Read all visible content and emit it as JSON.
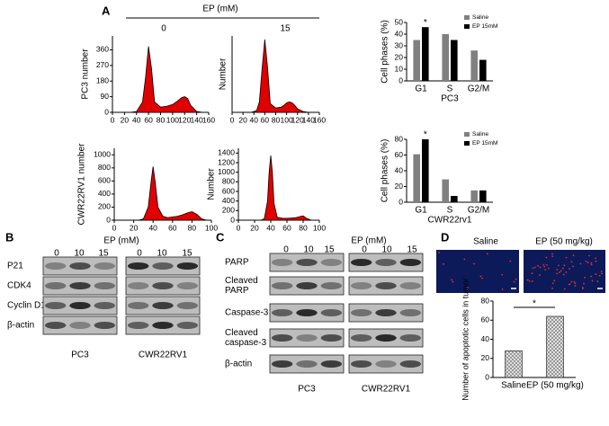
{
  "panel_labels": [
    "A",
    "B",
    "C",
    "D"
  ],
  "panel_a": {
    "header": "EP (mM)",
    "doses": [
      "0",
      "15"
    ]
  },
  "panel_b": {
    "header": "EP (mM)",
    "doses": [
      "0",
      "10",
      "15",
      "0",
      "10",
      "15"
    ],
    "rows": [
      [
        "P21"
      ],
      [
        "CDK4"
      ],
      [
        "Cyclin D1"
      ],
      [
        "β-actin"
      ]
    ],
    "cell_lines": [
      "PC3",
      "CWR22RV1"
    ]
  },
  "panel_c": {
    "header": "EP (mM)",
    "doses": [
      "0",
      "10",
      "15",
      "0",
      "10",
      "15"
    ],
    "rows": [
      [
        "PARP"
      ],
      [
        "Cleaved",
        "PARP"
      ],
      [
        "Caspase-3"
      ],
      [
        "Cleaved",
        "caspase-3"
      ],
      [
        "β-actin"
      ]
    ],
    "cell_lines": [
      "PC3",
      "CWR22RV1"
    ]
  },
  "panel_d": {
    "groups": [
      "Saline",
      "EP (50 mg/kg)"
    ]
  },
  "chart_data": [
    {
      "type": "area",
      "ylabel": "PC3 number",
      "color": "#e00000",
      "x": [
        30,
        40,
        50,
        55,
        60,
        65,
        70,
        80,
        90,
        100,
        110,
        115,
        120,
        125,
        130,
        140,
        150
      ],
      "values": [
        0,
        5,
        60,
        200,
        380,
        250,
        60,
        30,
        35,
        45,
        70,
        85,
        90,
        80,
        40,
        5,
        0
      ],
      "xlim": [
        0,
        160
      ],
      "xticks": [
        0,
        20,
        40,
        60,
        80,
        100,
        120,
        140,
        160
      ],
      "ylim": [
        0,
        440
      ],
      "yticks": [
        0,
        90,
        180,
        270,
        360
      ]
    },
    {
      "type": "area",
      "ylabel": "Number",
      "color": "#e00000",
      "x": [
        35,
        45,
        50,
        55,
        60,
        65,
        70,
        80,
        90,
        95,
        100,
        105,
        110,
        115,
        120,
        130,
        140
      ],
      "values": [
        0,
        10,
        60,
        250,
        420,
        260,
        50,
        25,
        30,
        40,
        55,
        60,
        55,
        40,
        20,
        5,
        0
      ],
      "xlim": [
        0,
        160
      ],
      "xticks": [
        0,
        20,
        40,
        60,
        80,
        100,
        120,
        140,
        160
      ],
      "ylim": [
        0,
        440
      ]
    },
    {
      "type": "area",
      "ylabel": "CWR22RV1 number",
      "color": "#e00000",
      "x": [
        25,
        30,
        35,
        38,
        40,
        42,
        45,
        50,
        55,
        60,
        65,
        70,
        75,
        80,
        85,
        90,
        95
      ],
      "values": [
        0,
        20,
        200,
        600,
        820,
        600,
        200,
        60,
        40,
        50,
        60,
        80,
        110,
        130,
        90,
        20,
        0
      ],
      "xlim": [
        0,
        100
      ],
      "xticks": [
        0,
        20,
        40,
        60,
        80,
        100
      ],
      "ylim": [
        0,
        1100
      ],
      "yticks": [
        0,
        200,
        400,
        600,
        800,
        1000
      ]
    },
    {
      "type": "area",
      "ylabel": "Number",
      "color": "#e00000",
      "x": [
        28,
        32,
        36,
        38,
        40,
        42,
        44,
        48,
        55,
        60,
        65,
        70,
        75,
        78,
        80,
        84,
        90
      ],
      "values": [
        0,
        30,
        400,
        1000,
        1350,
        1000,
        350,
        60,
        40,
        40,
        45,
        50,
        70,
        85,
        90,
        40,
        0
      ],
      "xlim": [
        0,
        100
      ],
      "xticks": [
        0,
        20,
        40,
        60,
        80,
        100
      ],
      "ylim": [
        0,
        1500
      ],
      "yticks": [
        0,
        200,
        400,
        600,
        800,
        1000,
        1200,
        1400
      ]
    },
    {
      "type": "bar",
      "ylabel": "Cell phases (%)",
      "xlabel": "PC3",
      "annotation": "*",
      "categories": [
        "G1",
        "S",
        "G2/M"
      ],
      "series": [
        {
          "name": "Saline",
          "color": "#808080",
          "values": [
            35,
            40,
            26
          ]
        },
        {
          "name": "EP 15mM",
          "color": "#000000",
          "values": [
            46,
            35,
            18
          ]
        }
      ],
      "ylim": [
        0,
        50
      ],
      "yticks": [
        0,
        10,
        20,
        30,
        40,
        50
      ]
    },
    {
      "type": "bar",
      "ylabel": "Cell phases (%)",
      "xlabel": "CWR22rv1",
      "annotation": "*",
      "categories": [
        "G1",
        "S",
        "G2/M"
      ],
      "series": [
        {
          "name": "Saline",
          "color": "#808080",
          "values": [
            61,
            29,
            15
          ]
        },
        {
          "name": "EP 15mM",
          "color": "#000000",
          "values": [
            80,
            8,
            15
          ]
        }
      ],
      "ylim": [
        0,
        80
      ],
      "yticks": [
        0,
        20,
        40,
        60,
        80
      ]
    },
    {
      "type": "bar",
      "ylabel": "Number of apoptotic cells in tumor",
      "annotation": "*",
      "categories": [
        "Saline",
        "EP (50 mg/kg)"
      ],
      "series": [
        {
          "color": "#888888",
          "values": [
            28,
            64
          ]
        }
      ],
      "ylim": [
        0,
        80
      ],
      "yticks": [
        0,
        20,
        40,
        60,
        80
      ]
    }
  ]
}
